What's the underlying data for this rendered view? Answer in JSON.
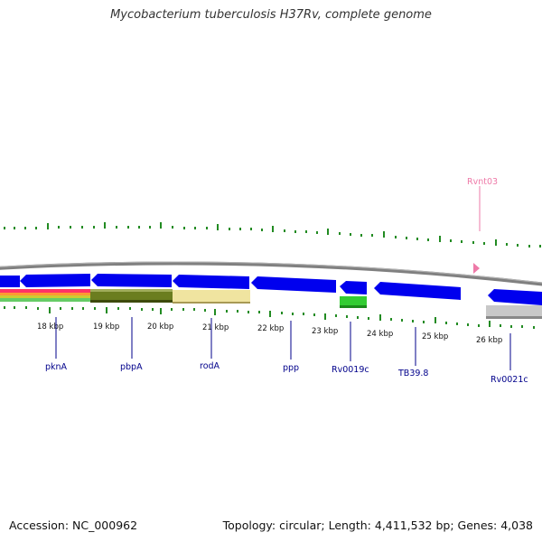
{
  "title": "Mycobacterium tuberculosis H37Rv, complete genome",
  "accession": "Accession: NC_000962",
  "summary": "Topology: circular; Length: 4,411,532 bp; Genes: 4,038",
  "colors": {
    "backbone": "#808080",
    "gene": "#0000ee",
    "ticks": "#228b22",
    "label": "#00008b",
    "rvnt": "#ee7aa8",
    "green_feature": "#33cc33",
    "olive_band": "#6b7d1f",
    "yellow_band": "#f0e4a0",
    "gray_feature": "#c8c8c8"
  },
  "kbp_labels": [
    "18 kbp",
    "19 kbp",
    "20 kbp",
    "21 kbp",
    "22 kbp",
    "23 kbp",
    "24 kbp",
    "25 kbp",
    "26 kbp"
  ],
  "genes": [
    "pknA",
    "pbpA",
    "rodA",
    "ppp",
    "Rv0019c",
    "TB39.8",
    "Rv0021c"
  ],
  "rvnt_label": "Rvnt03"
}
